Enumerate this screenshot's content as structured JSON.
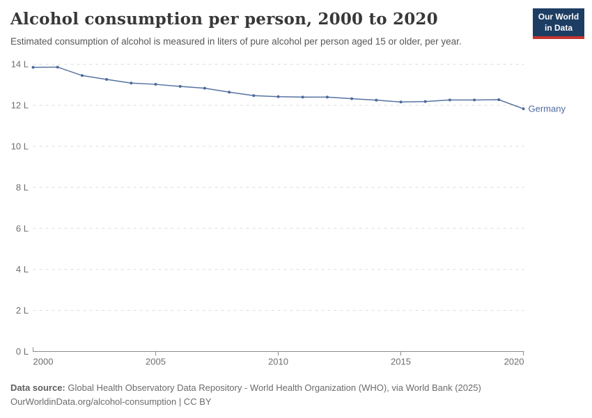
{
  "header": {
    "title": "Alcohol consumption per person, 2000 to 2020",
    "subtitle": "Estimated consumption of alcohol is measured in liters of pure alcohol per person aged 15 or older, per year.",
    "logo": {
      "line1": "Our World",
      "line2": "in Data",
      "bg_color": "#1d3d63",
      "bar_color": "#c6352f"
    }
  },
  "chart_data": {
    "type": "line",
    "title": "Alcohol consumption per person, 2000 to 2020",
    "xlabel": "",
    "ylabel": "liters of pure alcohol per person aged 15+, per year",
    "x": [
      2000,
      2001,
      2002,
      2003,
      2004,
      2005,
      2006,
      2007,
      2008,
      2009,
      2010,
      2011,
      2012,
      2013,
      2014,
      2015,
      2016,
      2017,
      2018,
      2019,
      2020
    ],
    "series": [
      {
        "name": "Germany",
        "color": "#4C6A9C",
        "values": [
          13.85,
          13.86,
          13.45,
          13.26,
          13.08,
          13.02,
          12.92,
          12.83,
          12.64,
          12.47,
          12.42,
          12.4,
          12.4,
          12.32,
          12.25,
          12.16,
          12.18,
          12.26,
          12.26,
          12.27,
          11.83
        ]
      }
    ],
    "xlim": [
      2000,
      2020
    ],
    "ylim": [
      0,
      14
    ],
    "x_ticks": [
      2000,
      2005,
      2010,
      2015,
      2020
    ],
    "y_ticks": [
      {
        "value": 0,
        "label": "0 L"
      },
      {
        "value": 2,
        "label": "2 L"
      },
      {
        "value": 4,
        "label": "4 L"
      },
      {
        "value": 6,
        "label": "6 L"
      },
      {
        "value": 8,
        "label": "8 L"
      },
      {
        "value": 10,
        "label": "10 L"
      },
      {
        "value": 12,
        "label": "12 L"
      },
      {
        "value": 14,
        "label": "14 L"
      }
    ],
    "grid": "horizontal-dashed",
    "legend_position": "end-of-line-label",
    "colors": {
      "grid": "#dcdcdc",
      "axis": "#8c8c8c",
      "tick_label": "#6e6e6e"
    }
  },
  "footer": {
    "source_label": "Data source:",
    "source_text": " Global Health Observatory Data Repository - World Health Organization (WHO), via World Bank (2025)",
    "note_text": "OurWorldinData.org/alcohol-consumption | CC BY"
  }
}
